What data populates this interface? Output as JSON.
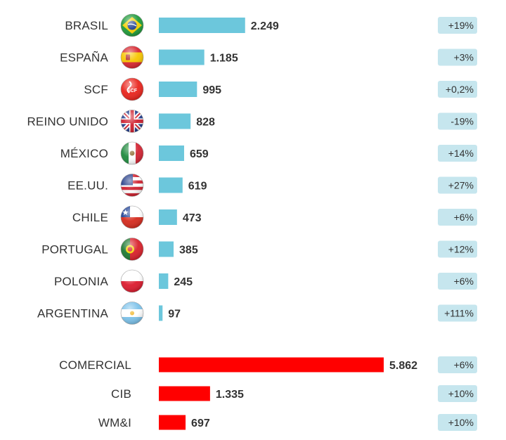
{
  "colors": {
    "country_bar": "#6cc7dc",
    "segment_bar": "#ff0000",
    "badge_bg": "#c6e6ee",
    "text": "#333333"
  },
  "chart_data": {
    "type": "bar",
    "orientation": "horizontal",
    "grid": false,
    "groups": [
      {
        "categories": [
          "BRASIL",
          "ESPAÑA",
          "SCF",
          "REINO UNIDO",
          "MÉXICO",
          "EE.UU.",
          "CHILE",
          "PORTUGAL",
          "POLONIA",
          "ARGENTINA"
        ],
        "values": [
          2249,
          1185,
          995,
          828,
          659,
          619,
          473,
          385,
          245,
          97
        ],
        "value_labels": [
          "2.249",
          "1.185",
          "995",
          "828",
          "659",
          "619",
          "473",
          "385",
          "245",
          "97"
        ],
        "changes": [
          "+19%",
          "+3%",
          "+0,2%",
          "-19%",
          "+14%",
          "+27%",
          "+6%",
          "+12%",
          "+6%",
          "+111%"
        ],
        "icons": [
          "brazil-flag-icon",
          "spain-flag-icon",
          "scf-logo-icon",
          "uk-flag-icon",
          "mexico-flag-icon",
          "usa-flag-icon",
          "chile-flag-icon",
          "portugal-flag-icon",
          "poland-flag-icon",
          "argentina-flag-icon"
        ],
        "icon_text": [
          "",
          "",
          "SCF",
          "",
          "",
          "",
          "",
          "",
          "",
          ""
        ],
        "color": "#6cc7dc"
      },
      {
        "categories": [
          "COMERCIAL",
          "CIB",
          "WM&I"
        ],
        "values": [
          5862,
          1335,
          697
        ],
        "value_labels": [
          "5.862",
          "1.335",
          "697"
        ],
        "changes": [
          "+6%",
          "+10%",
          "+10%"
        ],
        "color": "#ff0000"
      }
    ]
  }
}
